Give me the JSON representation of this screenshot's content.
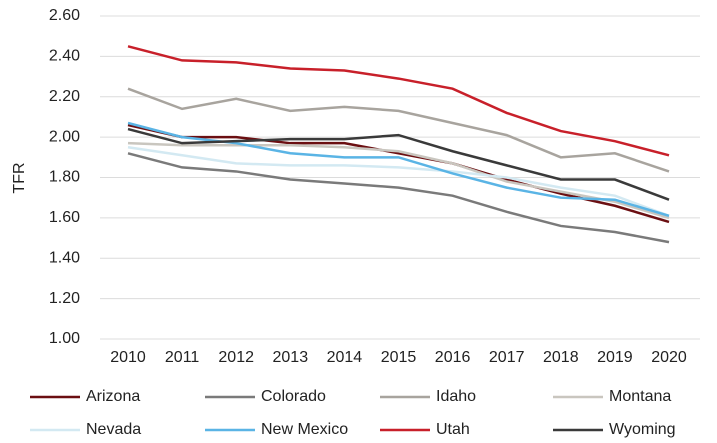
{
  "chart_data": {
    "type": "line",
    "y_label": "TFR",
    "categories": [
      "2010",
      "2011",
      "2012",
      "2013",
      "2014",
      "2015",
      "2016",
      "2017",
      "2018",
      "2019",
      "2020"
    ],
    "series": [
      {
        "name": "Arizona",
        "color": "#6b0f12",
        "values": [
          2.06,
          2.0,
          2.0,
          1.97,
          1.97,
          1.92,
          1.87,
          1.79,
          1.72,
          1.66,
          1.58
        ]
      },
      {
        "name": "Colorado",
        "color": "#7a7a7a",
        "values": [
          1.92,
          1.85,
          1.83,
          1.79,
          1.77,
          1.75,
          1.71,
          1.63,
          1.56,
          1.53,
          1.48
        ]
      },
      {
        "name": "Idaho",
        "color": "#a8a49e",
        "values": [
          2.24,
          2.14,
          2.19,
          2.13,
          2.15,
          2.13,
          2.07,
          2.01,
          1.9,
          1.92,
          1.83
        ]
      },
      {
        "name": "Montana",
        "color": "#c9c6bf",
        "values": [
          1.97,
          1.96,
          1.96,
          1.96,
          1.95,
          1.93,
          1.87,
          1.78,
          1.73,
          1.68,
          1.6
        ]
      },
      {
        "name": "Nevada",
        "color": "#d3e9f2",
        "values": [
          1.95,
          1.91,
          1.87,
          1.86,
          1.86,
          1.85,
          1.83,
          1.8,
          1.75,
          1.71,
          1.61
        ]
      },
      {
        "name": "New Mexico",
        "color": "#5ab4e5",
        "values": [
          2.07,
          2.0,
          1.97,
          1.92,
          1.9,
          1.9,
          1.82,
          1.75,
          1.7,
          1.69,
          1.61
        ]
      },
      {
        "name": "Utah",
        "color": "#c8202a",
        "values": [
          2.45,
          2.38,
          2.37,
          2.34,
          2.33,
          2.29,
          2.24,
          2.12,
          2.03,
          1.98,
          1.91
        ]
      },
      {
        "name": "Wyoming",
        "color": "#3a3a3a",
        "values": [
          2.04,
          1.97,
          1.98,
          1.99,
          1.99,
          2.01,
          1.93,
          1.86,
          1.79,
          1.79,
          1.69
        ]
      }
    ],
    "ylim": [
      1,
      2.6
    ],
    "yticks": [
      {
        "value": 1,
        "label": "1.00"
      },
      {
        "value": 1.2,
        "label": "1.20"
      },
      {
        "value": 1.4,
        "label": "1.40"
      },
      {
        "value": 1.6,
        "label": "1.60"
      },
      {
        "value": 1.8,
        "label": "1.80"
      },
      {
        "value": 2,
        "label": "2.00"
      },
      {
        "value": 2.2,
        "label": "2.20"
      },
      {
        "value": 2.4,
        "label": "2.40"
      },
      {
        "value": 2.6,
        "label": "2.60"
      }
    ],
    "grid": true
  }
}
